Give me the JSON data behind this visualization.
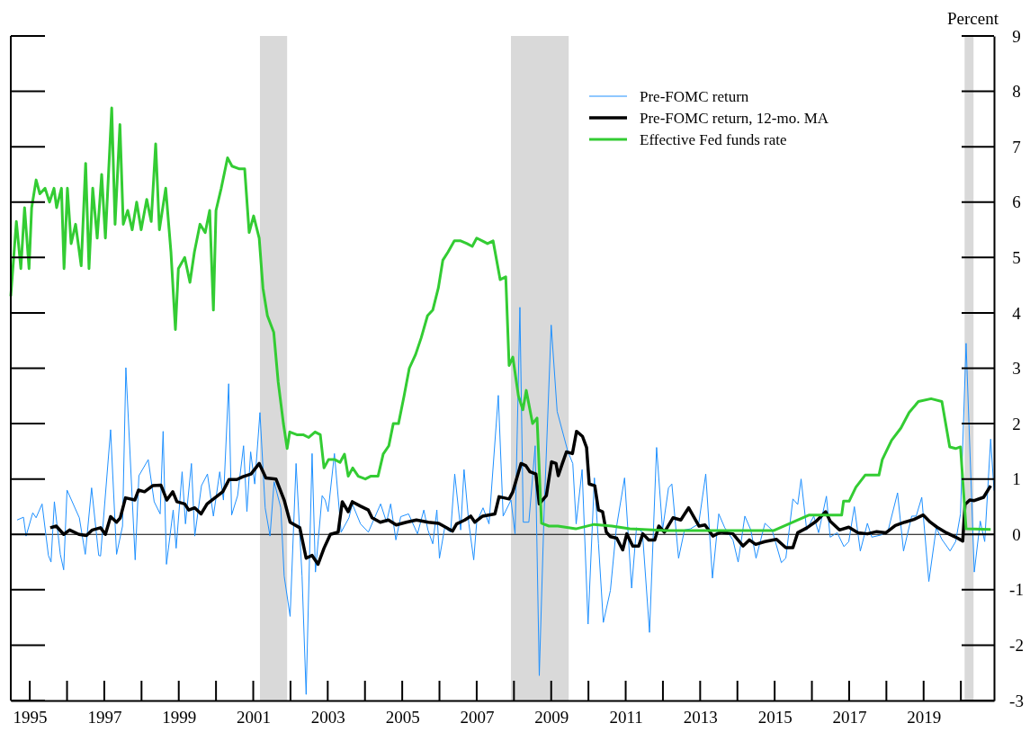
{
  "chart_data": {
    "type": "line",
    "ylabel": "Percent",
    "xlim": [
      1994.49,
      2020.89
    ],
    "ylim": [
      -3,
      9
    ],
    "xticks": [
      1995,
      1997,
      1999,
      2001,
      2003,
      2005,
      2007,
      2009,
      2011,
      2013,
      2015,
      2017,
      2019
    ],
    "yticks": [
      -3,
      -2,
      -1,
      0,
      1,
      2,
      3,
      4,
      5,
      6,
      7,
      8,
      9
    ],
    "grid": false,
    "legend": "top right",
    "ref_lines": [
      {
        "axis": "y",
        "value": 0,
        "color": "#000000"
      }
    ],
    "bands": [
      {
        "axis": "x",
        "from": 2001.18,
        "to": 2001.91,
        "color": "#d9d9d9"
      },
      {
        "axis": "x",
        "from": 2007.92,
        "to": 2009.47,
        "color": "#d9d9d9"
      },
      {
        "axis": "x",
        "from": 2020.1,
        "to": 2020.34,
        "color": "#d9d9d9"
      }
    ],
    "series": [
      {
        "name": "Pre-FOMC return",
        "color": "#1e90ff",
        "x": [
          1994.66,
          1994.83,
          1994.9,
          1995.08,
          1995.17,
          1995.33,
          1995.5,
          1995.57,
          1995.66,
          1995.82,
          1995.91,
          1996.0,
          1996.33,
          1996.49,
          1996.66,
          1996.85,
          1996.9,
          1997.17,
          1997.33,
          1997.49,
          1997.58,
          1997.83,
          1997.93,
          1998.18,
          1998.34,
          1998.5,
          1998.58,
          1998.67,
          1998.85,
          1998.93,
          1999.09,
          1999.18,
          1999.34,
          1999.43,
          1999.61,
          1999.77,
          1999.93,
          2000.1,
          2000.2,
          2000.34,
          2000.42,
          2000.58,
          2000.74,
          2000.83,
          2000.93,
          2001.04,
          2001.18,
          2001.32,
          2001.45,
          2001.56,
          2001.74,
          2001.83,
          2001.99,
          2002.15,
          2002.31,
          2002.42,
          2002.58,
          2002.67,
          2002.85,
          2002.93,
          2003.01,
          2003.18,
          2003.36,
          2003.57,
          2003.66,
          2003.88,
          2004.09,
          2004.42,
          2004.58,
          2004.69,
          2004.83,
          2004.96,
          2005.17,
          2005.41,
          2005.58,
          2005.69,
          2005.82,
          2005.93,
          2006.0,
          2006.14,
          2006.3,
          2006.41,
          2006.57,
          2006.66,
          2006.79,
          2006.92,
          2007.0,
          2007.17,
          2007.33,
          2007.58,
          2007.71,
          2007.92,
          2008.03,
          2008.16,
          2008.25,
          2008.4,
          2008.57,
          2008.68,
          2008.81,
          2009.0,
          2009.16,
          2009.45,
          2009.58,
          2009.67,
          2009.83,
          2009.99,
          2010.16,
          2010.27,
          2010.4,
          2010.59,
          2010.75,
          2010.97,
          2011.16,
          2011.29,
          2011.45,
          2011.64,
          2011.83,
          2011.99,
          2012.15,
          2012.24,
          2012.42,
          2012.58,
          2012.74,
          2012.96,
          2013.15,
          2013.33,
          2013.5,
          2013.66,
          2013.88,
          2014.02,
          2014.2,
          2014.36,
          2014.5,
          2014.74,
          2014.93,
          2015.18,
          2015.3,
          2015.49,
          2015.62,
          2015.71,
          2015.86,
          2016.05,
          2016.18,
          2016.39,
          2016.49,
          2016.68,
          2016.86,
          2016.99,
          2017.14,
          2017.3,
          2017.49,
          2017.61,
          2017.86,
          2018.05,
          2018.3,
          2018.46,
          2018.68,
          2018.8,
          2018.95,
          2019.14,
          2019.34,
          2019.49,
          2019.71,
          2019.86,
          2019.99,
          2020.14,
          2020.36,
          2020.52,
          2020.64,
          2020.8,
          2020.89
        ],
        "values": [
          0.26,
          0.31,
          -0.03,
          0.39,
          0.3,
          0.55,
          -0.38,
          -0.5,
          0.59,
          -0.36,
          -0.64,
          0.8,
          0.3,
          -0.36,
          0.84,
          -0.38,
          -0.39,
          1.89,
          -0.36,
          0.15,
          3.01,
          -0.46,
          1.06,
          1.35,
          0.59,
          0.37,
          1.86,
          -0.54,
          0.44,
          -0.25,
          1.13,
          0.19,
          1.28,
          -0.03,
          0.88,
          1.09,
          0.33,
          1.13,
          0.62,
          2.72,
          0.35,
          0.7,
          1.6,
          0.41,
          1.49,
          0.91,
          2.2,
          0.48,
          -0.03,
          0.95,
          0.48,
          -0.75,
          -1.48,
          1.28,
          -0.75,
          -2.89,
          1.46,
          -0.68,
          0.7,
          0.62,
          0.41,
          1.46,
          0.04,
          0.3,
          0.55,
          0.19,
          0.04,
          0.55,
          0.22,
          0.55,
          -0.1,
          0.32,
          0.37,
          0.01,
          0.44,
          0.08,
          -0.17,
          0.44,
          -0.43,
          0.12,
          0.04,
          1.09,
          0.08,
          1.17,
          0.19,
          -0.46,
          0.22,
          0.48,
          0.19,
          2.51,
          0.33,
          0.62,
          0.01,
          4.1,
          0.22,
          0.22,
          1.6,
          -2.55,
          0.41,
          3.78,
          2.22,
          1.49,
          1.28,
          0.19,
          1.17,
          -1.62,
          1.02,
          -0.17,
          -1.59,
          -1.01,
          0.12,
          1.02,
          -0.97,
          0.12,
          0.04,
          -1.77,
          1.57,
          0.08,
          0.84,
          0.91,
          -0.43,
          0.08,
          0.1,
          0.19,
          1.09,
          -0.79,
          0.37,
          0.12,
          -0.1,
          -0.5,
          0.33,
          0.08,
          -0.43,
          0.2,
          0.08,
          -0.51,
          -0.43,
          0.64,
          0.54,
          1.0,
          0.08,
          0.33,
          0.03,
          0.69,
          -0.05,
          0.03,
          -0.22,
          -0.13,
          0.5,
          -0.3,
          0.2,
          -0.05,
          -0.01,
          0.08,
          0.75,
          -0.3,
          0.33,
          0.33,
          0.67,
          -0.85,
          0.12,
          -0.09,
          -0.3,
          -0.13,
          0.37,
          3.45,
          -0.68,
          0.24,
          -0.13,
          1.72,
          0.79
        ]
      },
      {
        "name": "Pre-FOMC return, 12-mo. MA",
        "color": "#000000",
        "x": [
          1995.55,
          1995.71,
          1995.91,
          1996.07,
          1996.32,
          1996.52,
          1996.68,
          1996.9,
          1997.03,
          1997.17,
          1997.33,
          1997.43,
          1997.57,
          1997.82,
          1997.92,
          1998.08,
          1998.3,
          1998.52,
          1998.68,
          1998.84,
          1998.95,
          1999.16,
          1999.27,
          1999.43,
          1999.6,
          1999.76,
          1999.97,
          2000.18,
          2000.35,
          2000.56,
          2000.72,
          2000.94,
          2001.16,
          2001.34,
          2001.61,
          2001.83,
          2001.99,
          2002.25,
          2002.42,
          2002.58,
          2002.74,
          2002.9,
          2003.07,
          2003.28,
          2003.39,
          2003.55,
          2003.66,
          2003.88,
          2004.09,
          2004.19,
          2004.41,
          2004.63,
          2004.84,
          2005.11,
          2005.38,
          2005.7,
          2005.98,
          2006.24,
          2006.35,
          2006.46,
          2006.68,
          2006.84,
          2006.95,
          2007.16,
          2007.49,
          2007.6,
          2007.87,
          2007.97,
          2008.19,
          2008.32,
          2008.43,
          2008.59,
          2008.68,
          2008.87,
          2009.01,
          2009.13,
          2009.19,
          2009.3,
          2009.41,
          2009.57,
          2009.68,
          2009.84,
          2009.95,
          2010.02,
          2010.17,
          2010.27,
          2010.38,
          2010.48,
          2010.59,
          2010.76,
          2010.92,
          2011.03,
          2011.19,
          2011.35,
          2011.46,
          2011.62,
          2011.78,
          2011.89,
          2012.04,
          2012.27,
          2012.48,
          2012.69,
          2012.97,
          2013.13,
          2013.34,
          2013.55,
          2013.88,
          2014.15,
          2014.32,
          2014.49,
          2014.74,
          2015.05,
          2015.3,
          2015.49,
          2015.62,
          2015.87,
          2016.12,
          2016.37,
          2016.49,
          2016.74,
          2016.99,
          2017.24,
          2017.49,
          2017.74,
          2017.99,
          2018.24,
          2018.49,
          2018.74,
          2018.99,
          2019.18,
          2019.36,
          2019.61,
          2019.86,
          2020.05,
          2020.11,
          2020.24,
          2020.36,
          2020.61,
          2020.8
        ],
        "values": [
          0.12,
          0.15,
          0.0,
          0.08,
          0.0,
          -0.02,
          0.08,
          0.12,
          0.0,
          0.32,
          0.22,
          0.3,
          0.66,
          0.62,
          0.8,
          0.77,
          0.88,
          0.89,
          0.62,
          0.77,
          0.59,
          0.55,
          0.44,
          0.48,
          0.37,
          0.55,
          0.66,
          0.77,
          0.99,
          0.99,
          1.04,
          1.09,
          1.28,
          1.02,
          1.0,
          0.62,
          0.22,
          0.12,
          -0.43,
          -0.38,
          -0.54,
          -0.25,
          0.0,
          0.04,
          0.59,
          0.41,
          0.59,
          0.51,
          0.44,
          0.3,
          0.22,
          0.26,
          0.17,
          0.22,
          0.26,
          0.22,
          0.2,
          0.1,
          0.06,
          0.19,
          0.26,
          0.33,
          0.22,
          0.33,
          0.37,
          0.68,
          0.64,
          0.77,
          1.28,
          1.24,
          1.13,
          1.09,
          0.55,
          0.7,
          1.31,
          1.28,
          1.06,
          1.28,
          1.49,
          1.46,
          1.86,
          1.77,
          1.57,
          0.91,
          0.88,
          0.44,
          0.41,
          0.04,
          -0.04,
          -0.07,
          -0.28,
          0.01,
          -0.21,
          -0.21,
          0.01,
          -0.1,
          -0.1,
          0.15,
          0.04,
          0.3,
          0.26,
          0.48,
          0.15,
          0.17,
          -0.03,
          0.04,
          0.01,
          -0.21,
          -0.1,
          -0.18,
          -0.13,
          -0.09,
          -0.24,
          -0.24,
          0.03,
          0.12,
          0.24,
          0.41,
          0.24,
          0.08,
          0.13,
          0.03,
          0.01,
          0.05,
          0.03,
          0.16,
          0.22,
          0.27,
          0.35,
          0.22,
          0.13,
          0.03,
          -0.05,
          -0.12,
          0.54,
          0.62,
          0.61,
          0.67,
          0.88
        ]
      },
      {
        "name": "Effective Fed funds rate",
        "color": "#33cc33",
        "x": [
          1994.49,
          1994.64,
          1994.76,
          1994.86,
          1994.98,
          1995.05,
          1995.17,
          1995.27,
          1995.41,
          1995.53,
          1995.65,
          1995.72,
          1995.85,
          1995.92,
          1996.01,
          1996.11,
          1996.23,
          1996.38,
          1996.5,
          1996.59,
          1996.69,
          1996.81,
          1996.93,
          1997.03,
          1997.2,
          1997.29,
          1997.42,
          1997.51,
          1997.63,
          1997.75,
          1997.87,
          1997.99,
          1998.14,
          1998.26,
          1998.38,
          1998.48,
          1998.65,
          1998.79,
          1998.91,
          1998.99,
          1999.16,
          1999.3,
          1999.42,
          1999.57,
          1999.71,
          1999.83,
          1999.93,
          2000.0,
          2000.14,
          2000.31,
          2000.43,
          2000.63,
          2000.77,
          2000.89,
          2001.01,
          2001.16,
          2001.26,
          2001.38,
          2001.55,
          2001.67,
          2001.81,
          2001.91,
          2001.98,
          2002.17,
          2002.34,
          2002.49,
          2002.66,
          2002.8,
          2002.9,
          2003.02,
          2003.19,
          2003.33,
          2003.45,
          2003.55,
          2003.67,
          2003.82,
          2004.01,
          2004.15,
          2004.35,
          2004.49,
          2004.64,
          2004.76,
          2004.9,
          2005.05,
          2005.19,
          2005.36,
          2005.51,
          2005.68,
          2005.82,
          2005.97,
          2006.09,
          2006.23,
          2006.4,
          2006.57,
          2006.74,
          2006.88,
          2007.0,
          2007.15,
          2007.29,
          2007.44,
          2007.63,
          2007.78,
          2007.87,
          2007.97,
          2008.12,
          2008.24,
          2008.33,
          2008.5,
          2008.62,
          2008.74,
          2008.94,
          2009.18,
          2009.66,
          2010.15,
          2010.63,
          2011.11,
          2012.08,
          2013.53,
          2014.98,
          2015.93,
          2016.8,
          2016.85,
          2017.0,
          2017.18,
          2017.43,
          2017.8,
          2017.89,
          2018.14,
          2018.39,
          2018.61,
          2018.86,
          2019.2,
          2019.49,
          2019.7,
          2019.86,
          2019.99,
          2020.14,
          2020.8
        ],
        "values": [
          4.3,
          5.65,
          4.8,
          5.9,
          4.8,
          5.9,
          6.4,
          6.15,
          6.25,
          6.0,
          6.25,
          5.9,
          6.25,
          4.8,
          6.25,
          5.25,
          5.6,
          4.85,
          6.7,
          4.8,
          6.25,
          5.35,
          6.5,
          5.35,
          7.7,
          5.6,
          7.4,
          5.6,
          5.85,
          5.5,
          6.0,
          5.5,
          6.05,
          5.65,
          7.05,
          5.5,
          6.25,
          5.1,
          3.7,
          4.8,
          5.0,
          4.55,
          5.1,
          5.6,
          5.45,
          5.85,
          4.05,
          5.85,
          6.25,
          6.8,
          6.65,
          6.6,
          6.6,
          5.45,
          5.75,
          5.35,
          4.45,
          3.95,
          3.65,
          2.75,
          2.0,
          1.55,
          1.85,
          1.8,
          1.8,
          1.75,
          1.85,
          1.8,
          1.2,
          1.35,
          1.35,
          1.3,
          1.45,
          1.05,
          1.2,
          1.05,
          1.0,
          1.05,
          1.05,
          1.45,
          1.6,
          2.0,
          2.0,
          2.5,
          3.0,
          3.25,
          3.55,
          3.95,
          4.05,
          4.45,
          4.95,
          5.1,
          5.3,
          5.3,
          5.25,
          5.2,
          5.35,
          5.3,
          5.25,
          5.3,
          4.6,
          4.65,
          3.05,
          3.2,
          2.5,
          2.25,
          2.6,
          2.0,
          2.1,
          0.2,
          0.15,
          0.15,
          0.1,
          0.18,
          0.15,
          0.1,
          0.07,
          0.07,
          0.07,
          0.35,
          0.35,
          0.6,
          0.6,
          0.85,
          1.07,
          1.07,
          1.35,
          1.7,
          1.92,
          2.2,
          2.4,
          2.45,
          2.4,
          1.58,
          1.55,
          1.58,
          0.1,
          0.09
        ]
      }
    ]
  }
}
